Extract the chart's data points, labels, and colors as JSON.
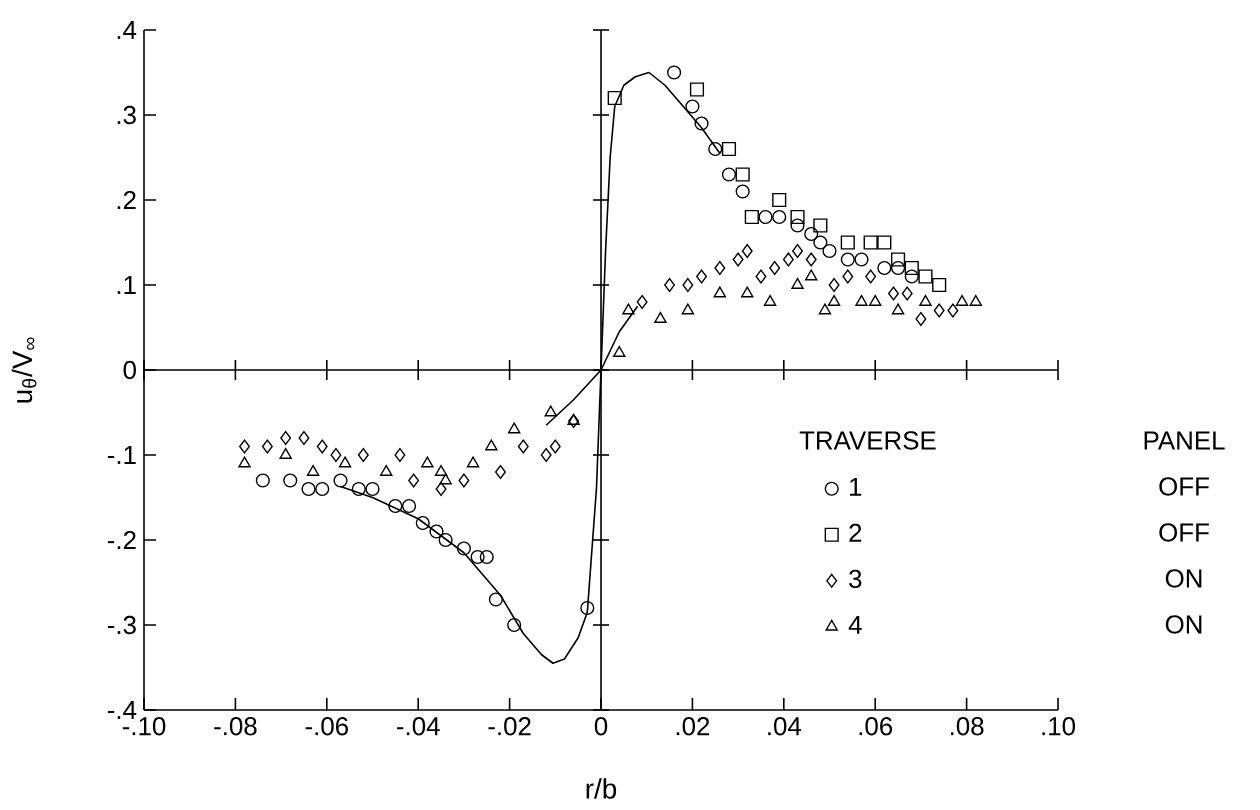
{
  "chart_data": {
    "type": "scatter",
    "xlabel": "r/b",
    "ylabel": "u$_{θ}$/V$_{∞}$",
    "legend_title": "TRAVERSE",
    "legend": "bottom right",
    "annotations": [
      "PANEL",
      "OFF",
      "OFF",
      "ON",
      "ON"
    ],
    "xlim": [
      -0.1,
      0.1
    ],
    "ylim": [
      -0.4,
      0.4
    ],
    "xticks": [
      {
        "value": -0.1,
        "label": "-.10"
      },
      {
        "value": -0.08,
        "label": "-.08"
      },
      {
        "value": -0.06,
        "label": "-.06"
      },
      {
        "value": -0.04,
        "label": "-.04"
      },
      {
        "value": -0.02,
        "label": "-.02"
      },
      0,
      {
        "value": 0.02,
        "label": ".02"
      },
      {
        "value": 0.04,
        "label": ".04"
      },
      {
        "value": 0.06,
        "label": ".06"
      },
      {
        "value": 0.08,
        "label": ".08"
      },
      {
        "value": 0.1,
        "label": ".10"
      }
    ],
    "yticks": [
      {
        "value": -0.4,
        "label": "-.4"
      },
      {
        "value": -0.3,
        "label": "-.3"
      },
      {
        "value": -0.2,
        "label": "-.2"
      },
      {
        "value": -0.1,
        "label": "-.1"
      },
      0,
      {
        "value": 0.1,
        "label": ".1"
      },
      {
        "value": 0.2,
        "label": ".2"
      },
      {
        "value": 0.3,
        "label": ".3"
      },
      {
        "value": 0.4,
        "label": ".4"
      }
    ],
    "series": [
      {
        "name": "1",
        "color": "#000000",
        "marker": "circle",
        "x": [
          0.016,
          0.02,
          0.022,
          0.025,
          0.028,
          0.031,
          0.036,
          0.039,
          0.043,
          0.046,
          0.048,
          0.05,
          0.054,
          0.057,
          0.062,
          0.065,
          0.068,
          -0.074,
          -0.068,
          -0.064,
          -0.061,
          -0.057,
          -0.053,
          -0.05,
          -0.045,
          -0.042,
          -0.039,
          -0.036,
          -0.034,
          -0.03,
          -0.027,
          -0.025,
          -0.023,
          -0.019,
          -0.003
        ],
        "values": [
          0.35,
          0.31,
          0.29,
          0.26,
          0.23,
          0.21,
          0.18,
          0.18,
          0.17,
          0.16,
          0.15,
          0.14,
          0.13,
          0.13,
          0.12,
          0.12,
          0.11,
          -0.13,
          -0.13,
          -0.14,
          -0.14,
          -0.13,
          -0.14,
          -0.14,
          -0.16,
          -0.16,
          -0.18,
          -0.19,
          -0.2,
          -0.21,
          -0.22,
          -0.22,
          -0.27,
          -0.3,
          -0.28
        ]
      },
      {
        "name": "2",
        "color": "#000000",
        "marker": "square",
        "x": [
          0.003,
          0.021,
          0.028,
          0.031,
          0.033,
          0.039,
          0.043,
          0.048,
          0.054,
          0.059,
          0.062,
          0.065,
          0.068,
          0.071,
          0.074
        ],
        "values": [
          0.32,
          0.33,
          0.26,
          0.23,
          0.18,
          0.2,
          0.18,
          0.17,
          0.15,
          0.15,
          0.15,
          0.13,
          0.12,
          0.11,
          0.1
        ]
      },
      {
        "name": "3",
        "color": "#000000",
        "marker": "diamond",
        "x": [
          0.009,
          0.015,
          0.019,
          0.022,
          0.026,
          0.03,
          0.032,
          0.035,
          0.038,
          0.041,
          0.043,
          0.046,
          0.051,
          0.054,
          0.059,
          0.064,
          0.067,
          0.07,
          0.074,
          0.077,
          -0.078,
          -0.073,
          -0.069,
          -0.065,
          -0.061,
          -0.058,
          -0.052,
          -0.044,
          -0.041,
          -0.035,
          -0.03,
          -0.022,
          -0.017,
          -0.012,
          -0.01,
          -0.006
        ],
        "values": [
          0.08,
          0.1,
          0.1,
          0.11,
          0.12,
          0.13,
          0.14,
          0.11,
          0.12,
          0.13,
          0.14,
          0.13,
          0.1,
          0.11,
          0.11,
          0.09,
          0.09,
          0.06,
          0.07,
          0.07,
          -0.09,
          -0.09,
          -0.08,
          -0.08,
          -0.09,
          -0.1,
          -0.1,
          -0.1,
          -0.13,
          -0.14,
          -0.13,
          -0.12,
          -0.09,
          -0.1,
          -0.09,
          -0.06
        ]
      },
      {
        "name": "4",
        "color": "#000000",
        "marker": "triangle",
        "x": [
          0.004,
          0.006,
          0.013,
          0.019,
          0.026,
          0.032,
          0.037,
          0.043,
          0.046,
          0.049,
          0.051,
          0.057,
          0.06,
          0.065,
          0.071,
          0.079,
          0.082,
          -0.078,
          -0.069,
          -0.063,
          -0.056,
          -0.047,
          -0.038,
          -0.035,
          -0.034,
          -0.028,
          -0.024,
          -0.019,
          -0.011,
          -0.006
        ],
        "values": [
          0.02,
          0.07,
          0.06,
          0.07,
          0.09,
          0.09,
          0.08,
          0.1,
          0.11,
          0.07,
          0.08,
          0.08,
          0.08,
          0.07,
          0.08,
          0.08,
          0.08,
          -0.11,
          -0.1,
          -0.12,
          -0.11,
          -0.12,
          -0.11,
          -0.12,
          -0.13,
          -0.11,
          -0.09,
          -0.07,
          -0.05,
          -0.06
        ]
      },
      {
        "type": "line",
        "color": "#000000",
        "marker": "none",
        "x": [
          -0.057,
          -0.05,
          -0.04,
          -0.03,
          -0.022,
          -0.017,
          -0.013,
          -0.0105,
          -0.008,
          -0.005,
          -0.003,
          -0.001,
          0,
          0.001,
          0.002,
          0.003,
          0.005,
          0.0075,
          0.0105,
          0.014,
          0.018,
          0.022,
          0.026
        ],
        "values": [
          -0.137,
          -0.15,
          -0.175,
          -0.215,
          -0.265,
          -0.31,
          -0.335,
          -0.345,
          -0.34,
          -0.315,
          -0.285,
          -0.14,
          0,
          0.14,
          0.25,
          0.31,
          0.335,
          0.345,
          0.35,
          0.335,
          0.31,
          0.285,
          0.255
        ]
      },
      {
        "type": "line",
        "color": "#000000",
        "marker": "none",
        "x": [
          -0.012,
          -0.006,
          0,
          0.004,
          0.008
        ],
        "values": [
          -0.065,
          -0.035,
          0,
          0.045,
          0.075
        ]
      }
    ]
  }
}
